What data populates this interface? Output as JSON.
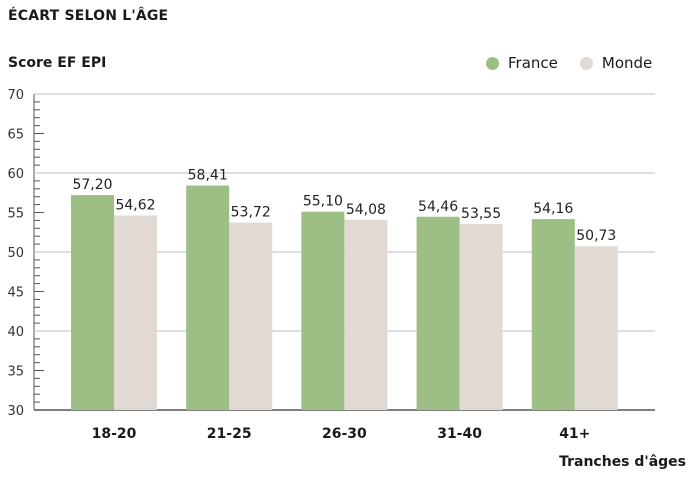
{
  "title": "ÉCART SELON L'ÂGE",
  "colors": {
    "france": "#9dbf85",
    "monde": "#e1d9d3",
    "grid": "#bdbdbd",
    "axis": "#333333"
  },
  "chart_data": {
    "type": "bar",
    "title": "ÉCART SELON L'ÂGE",
    "ylabel": "Score EF EPI",
    "xlabel": "Tranches d'âges",
    "ylim": [
      30,
      70
    ],
    "yticks": [
      30,
      35,
      40,
      45,
      50,
      55,
      60,
      65,
      70
    ],
    "grid": true,
    "legend_position": "top-right",
    "categories": [
      "18-20",
      "21-25",
      "26-30",
      "31-40",
      "41+"
    ],
    "series": [
      {
        "name": "France",
        "values": [
          57.2,
          58.41,
          55.1,
          54.46,
          54.16
        ],
        "labels": [
          "57,20",
          "58,41",
          "55,10",
          "54,46",
          "54,16"
        ]
      },
      {
        "name": "Monde",
        "values": [
          54.62,
          53.72,
          54.08,
          53.55,
          50.73
        ],
        "labels": [
          "54,62",
          "53,72",
          "54,08",
          "53,55",
          "50,73"
        ]
      }
    ]
  }
}
